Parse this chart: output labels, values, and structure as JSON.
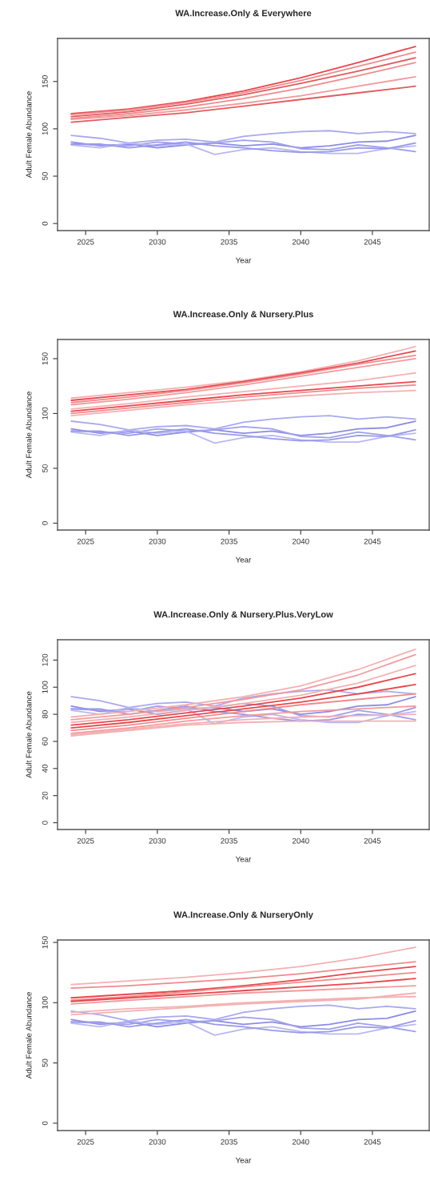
{
  "chart_data": [
    {
      "type": "line",
      "title": "WA.Increase.Only & Everywhere",
      "xlabel": "Year",
      "ylabel": "Adult Female Abundance",
      "xlim": [
        2023.04,
        2048.96
      ],
      "ylim": [
        -7.5,
        195.5
      ],
      "xticks": [
        2025,
        2030,
        2035,
        2040,
        2045
      ],
      "yticks": [
        0,
        50,
        100,
        150
      ],
      "grid": false,
      "line_style": "solid",
      "marker": "none",
      "series": [
        {
          "color": "#a9a9ee",
          "x": [
            2024,
            2026,
            2028,
            2030,
            2032,
            2034,
            2036,
            2038,
            2040,
            2042,
            2044,
            2046,
            2048
          ],
          "values": [
            93,
            90,
            85,
            88,
            89,
            86,
            92,
            95,
            97,
            98,
            95,
            97,
            95
          ]
        },
        {
          "color": "#8c8ce6",
          "x": [
            2024,
            2026,
            2028,
            2030,
            2032,
            2034,
            2036,
            2038,
            2040,
            2042,
            2044,
            2046,
            2048
          ],
          "values": [
            86,
            82,
            84,
            80,
            83,
            85,
            82,
            84,
            80,
            82,
            86,
            87,
            93
          ]
        },
        {
          "color": "#a0a0ec",
          "x": [
            2024,
            2026,
            2028,
            2030,
            2032,
            2034,
            2036,
            2038,
            2040,
            2042,
            2044,
            2046,
            2048
          ],
          "values": [
            84,
            83,
            82,
            86,
            84,
            85,
            88,
            86,
            79,
            78,
            83,
            80,
            76
          ]
        },
        {
          "color": "#b8b8f2",
          "x": [
            2024,
            2026,
            2028,
            2030,
            2032,
            2034,
            2036,
            2038,
            2040,
            2042,
            2044,
            2046,
            2048
          ],
          "values": [
            83,
            80,
            85,
            82,
            84,
            73,
            78,
            80,
            76,
            74,
            74,
            79,
            82
          ]
        },
        {
          "color": "#9898ea",
          "x": [
            2024,
            2026,
            2028,
            2030,
            2032,
            2034,
            2036,
            2038,
            2040,
            2042,
            2044,
            2046,
            2048
          ],
          "values": [
            84,
            84,
            80,
            83,
            86,
            82,
            80,
            77,
            75,
            76,
            80,
            79,
            85
          ]
        },
        {
          "color": "#e8474c",
          "x": [
            2024,
            2028,
            2032,
            2036,
            2040,
            2044,
            2048
          ],
          "values": [
            116,
            121,
            129,
            140,
            154,
            170,
            187
          ]
        },
        {
          "color": "#f08a8c",
          "x": [
            2024,
            2028,
            2032,
            2036,
            2040,
            2044,
            2048
          ],
          "values": [
            115,
            120,
            128,
            138,
            151,
            166,
            181
          ]
        },
        {
          "color": "#e25a5e",
          "x": [
            2024,
            2028,
            2032,
            2036,
            2040,
            2044,
            2048
          ],
          "values": [
            113,
            118,
            126,
            136,
            148,
            161,
            175
          ]
        },
        {
          "color": "#f08a8c",
          "x": [
            2024,
            2028,
            2032,
            2036,
            2040,
            2044,
            2048
          ],
          "values": [
            111,
            116,
            123,
            132,
            143,
            156,
            170
          ]
        },
        {
          "color": "#f29a9c",
          "x": [
            2024,
            2028,
            2032,
            2036,
            2040,
            2044,
            2048
          ],
          "values": [
            110,
            114,
            120,
            127,
            135,
            145,
            155
          ]
        },
        {
          "color": "#e25a5e",
          "x": [
            2024,
            2028,
            2032,
            2036,
            2040,
            2044,
            2048
          ],
          "values": [
            107,
            112,
            117,
            124,
            131,
            138,
            145
          ]
        }
      ]
    },
    {
      "type": "line",
      "title": "WA.Increase.Only & Nursery.Plus",
      "xlabel": "Year",
      "ylabel": "Adult Female Abundance",
      "xlim": [
        2023.04,
        2048.96
      ],
      "ylim": [
        -6.3,
        167.5
      ],
      "xticks": [
        2025,
        2030,
        2035,
        2040,
        2045
      ],
      "yticks": [
        0,
        50,
        100,
        150
      ],
      "grid": false,
      "line_style": "solid",
      "marker": "none",
      "series": [
        {
          "color": "#a9a9ee",
          "x": [
            2024,
            2026,
            2028,
            2030,
            2032,
            2034,
            2036,
            2038,
            2040,
            2042,
            2044,
            2046,
            2048
          ],
          "values": [
            93,
            90,
            85,
            88,
            89,
            86,
            92,
            95,
            97,
            98,
            95,
            97,
            95
          ]
        },
        {
          "color": "#8c8ce6",
          "x": [
            2024,
            2026,
            2028,
            2030,
            2032,
            2034,
            2036,
            2038,
            2040,
            2042,
            2044,
            2046,
            2048
          ],
          "values": [
            86,
            82,
            84,
            80,
            83,
            85,
            82,
            84,
            80,
            82,
            86,
            87,
            93
          ]
        },
        {
          "color": "#a0a0ec",
          "x": [
            2024,
            2026,
            2028,
            2030,
            2032,
            2034,
            2036,
            2038,
            2040,
            2042,
            2044,
            2046,
            2048
          ],
          "values": [
            84,
            83,
            82,
            86,
            84,
            85,
            88,
            86,
            79,
            78,
            83,
            80,
            76
          ]
        },
        {
          "color": "#b8b8f2",
          "x": [
            2024,
            2026,
            2028,
            2030,
            2032,
            2034,
            2036,
            2038,
            2040,
            2042,
            2044,
            2046,
            2048
          ],
          "values": [
            83,
            80,
            85,
            82,
            84,
            73,
            78,
            80,
            76,
            74,
            74,
            79,
            82
          ]
        },
        {
          "color": "#9898ea",
          "x": [
            2024,
            2026,
            2028,
            2030,
            2032,
            2034,
            2036,
            2038,
            2040,
            2042,
            2044,
            2046,
            2048
          ],
          "values": [
            84,
            84,
            80,
            83,
            86,
            82,
            80,
            77,
            75,
            76,
            80,
            79,
            85
          ]
        },
        {
          "color": "#f4b0b2",
          "x": [
            2024,
            2028,
            2032,
            2036,
            2040,
            2044,
            2048
          ],
          "values": [
            114,
            119,
            124,
            130,
            138,
            148,
            161
          ]
        },
        {
          "color": "#e8474c",
          "x": [
            2024,
            2028,
            2032,
            2036,
            2040,
            2044,
            2048
          ],
          "values": [
            112,
            117,
            122,
            129,
            137,
            146,
            157
          ]
        },
        {
          "color": "#f08a8c",
          "x": [
            2024,
            2028,
            2032,
            2036,
            2040,
            2044,
            2048
          ],
          "values": [
            110,
            115,
            121,
            128,
            136,
            145,
            153
          ]
        },
        {
          "color": "#f29a9c",
          "x": [
            2024,
            2028,
            2032,
            2036,
            2040,
            2044,
            2048
          ],
          "values": [
            108,
            113,
            119,
            126,
            134,
            142,
            150
          ]
        },
        {
          "color": "#f4b0b2",
          "x": [
            2024,
            2028,
            2032,
            2036,
            2040,
            2044,
            2048
          ],
          "values": [
            104,
            109,
            115,
            120,
            125,
            130,
            137
          ]
        },
        {
          "color": "#e8474c",
          "x": [
            2024,
            2028,
            2032,
            2036,
            2040,
            2044,
            2048
          ],
          "values": [
            102,
            107,
            112,
            117,
            121,
            125,
            129
          ]
        },
        {
          "color": "#f08a8c",
          "x": [
            2024,
            2028,
            2032,
            2036,
            2040,
            2044,
            2048
          ],
          "values": [
            100,
            105,
            110,
            115,
            119,
            123,
            126
          ]
        },
        {
          "color": "#f4b0b2",
          "x": [
            2024,
            2028,
            2032,
            2036,
            2040,
            2044,
            2048
          ],
          "values": [
            98,
            103,
            108,
            112,
            116,
            119,
            121
          ]
        }
      ]
    },
    {
      "type": "line",
      "title": "WA.Increase.Only & Nursery.Plus.VeryLow",
      "xlabel": "Year",
      "ylabel": "Adult Female Abundance",
      "xlim": [
        2023.04,
        2048.96
      ],
      "ylim": [
        -5,
        135
      ],
      "xticks": [
        2025,
        2030,
        2035,
        2040,
        2045
      ],
      "yticks": [
        0,
        20,
        40,
        60,
        80,
        100,
        120
      ],
      "grid": false,
      "line_style": "solid",
      "marker": "none",
      "series": [
        {
          "color": "#a9a9ee",
          "x": [
            2024,
            2026,
            2028,
            2030,
            2032,
            2034,
            2036,
            2038,
            2040,
            2042,
            2044,
            2046,
            2048
          ],
          "values": [
            93,
            90,
            85,
            88,
            89,
            86,
            92,
            95,
            97,
            98,
            95,
            97,
            95
          ]
        },
        {
          "color": "#8c8ce6",
          "x": [
            2024,
            2026,
            2028,
            2030,
            2032,
            2034,
            2036,
            2038,
            2040,
            2042,
            2044,
            2046,
            2048
          ],
          "values": [
            86,
            82,
            84,
            80,
            83,
            85,
            82,
            84,
            80,
            82,
            86,
            87,
            93
          ]
        },
        {
          "color": "#a0a0ec",
          "x": [
            2024,
            2026,
            2028,
            2030,
            2032,
            2034,
            2036,
            2038,
            2040,
            2042,
            2044,
            2046,
            2048
          ],
          "values": [
            84,
            83,
            82,
            86,
            84,
            85,
            88,
            86,
            79,
            78,
            83,
            80,
            76
          ]
        },
        {
          "color": "#b8b8f2",
          "x": [
            2024,
            2026,
            2028,
            2030,
            2032,
            2034,
            2036,
            2038,
            2040,
            2042,
            2044,
            2046,
            2048
          ],
          "values": [
            83,
            80,
            85,
            82,
            84,
            73,
            78,
            80,
            76,
            74,
            74,
            79,
            82
          ]
        },
        {
          "color": "#9898ea",
          "x": [
            2024,
            2026,
            2028,
            2030,
            2032,
            2034,
            2036,
            2038,
            2040,
            2042,
            2044,
            2046,
            2048
          ],
          "values": [
            84,
            84,
            80,
            83,
            86,
            82,
            80,
            77,
            75,
            76,
            80,
            79,
            85
          ]
        },
        {
          "color": "#f4b0b2",
          "x": [
            2024,
            2028,
            2032,
            2036,
            2040,
            2044,
            2048
          ],
          "values": [
            78,
            82,
            87,
            93,
            101,
            113,
            128
          ]
        },
        {
          "color": "#f29a9c",
          "x": [
            2024,
            2028,
            2032,
            2036,
            2040,
            2044,
            2048
          ],
          "values": [
            76,
            80,
            85,
            91,
            98,
            109,
            124
          ]
        },
        {
          "color": "#f4b0b2",
          "x": [
            2024,
            2028,
            2032,
            2036,
            2040,
            2044,
            2048
          ],
          "values": [
            74,
            78,
            83,
            88,
            94,
            103,
            116
          ]
        },
        {
          "color": "#e8474c",
          "x": [
            2024,
            2028,
            2032,
            2036,
            2040,
            2044,
            2048
          ],
          "values": [
            72,
            76,
            81,
            86,
            92,
            100,
            110
          ]
        },
        {
          "color": "#e8474c",
          "x": [
            2024,
            2028,
            2032,
            2036,
            2040,
            2044,
            2048
          ],
          "values": [
            70,
            74,
            79,
            84,
            89,
            95,
            102
          ]
        },
        {
          "color": "#f08a8c",
          "x": [
            2024,
            2028,
            2032,
            2036,
            2040,
            2044,
            2048
          ],
          "values": [
            68,
            72,
            77,
            82,
            87,
            91,
            95
          ]
        },
        {
          "color": "#f29a9c",
          "x": [
            2024,
            2028,
            2032,
            2036,
            2040,
            2044,
            2048
          ],
          "values": [
            66,
            70,
            75,
            79,
            82,
            84,
            86
          ]
        },
        {
          "color": "#f4b0b2",
          "x": [
            2024,
            2028,
            2032,
            2036,
            2040,
            2044,
            2048
          ],
          "values": [
            65,
            69,
            73,
            76,
            78,
            79,
            80
          ]
        },
        {
          "color": "#f4b0b2",
          "x": [
            2024,
            2028,
            2032,
            2036,
            2040,
            2044,
            2048
          ],
          "values": [
            64,
            68,
            72,
            74,
            75,
            75,
            75
          ]
        }
      ]
    },
    {
      "type": "line",
      "title": "WA.Increase.Only & NurseryOnly",
      "xlabel": "Year",
      "ylabel": "Adult Female Abundance",
      "xlim": [
        2023.04,
        2048.96
      ],
      "ylim": [
        -6.1,
        152
      ],
      "xticks": [
        2025,
        2030,
        2035,
        2040,
        2045
      ],
      "yticks": [
        0,
        50,
        100,
        150
      ],
      "grid": false,
      "line_style": "solid",
      "marker": "none",
      "series": [
        {
          "color": "#a9a9ee",
          "x": [
            2024,
            2026,
            2028,
            2030,
            2032,
            2034,
            2036,
            2038,
            2040,
            2042,
            2044,
            2046,
            2048
          ],
          "values": [
            93,
            90,
            85,
            88,
            89,
            86,
            92,
            95,
            97,
            98,
            95,
            97,
            95
          ]
        },
        {
          "color": "#8c8ce6",
          "x": [
            2024,
            2026,
            2028,
            2030,
            2032,
            2034,
            2036,
            2038,
            2040,
            2042,
            2044,
            2046,
            2048
          ],
          "values": [
            86,
            82,
            84,
            80,
            83,
            85,
            82,
            84,
            80,
            82,
            86,
            87,
            93
          ]
        },
        {
          "color": "#a0a0ec",
          "x": [
            2024,
            2026,
            2028,
            2030,
            2032,
            2034,
            2036,
            2038,
            2040,
            2042,
            2044,
            2046,
            2048
          ],
          "values": [
            84,
            83,
            82,
            86,
            84,
            85,
            88,
            86,
            79,
            78,
            83,
            80,
            76
          ]
        },
        {
          "color": "#b8b8f2",
          "x": [
            2024,
            2026,
            2028,
            2030,
            2032,
            2034,
            2036,
            2038,
            2040,
            2042,
            2044,
            2046,
            2048
          ],
          "values": [
            83,
            80,
            85,
            82,
            84,
            73,
            78,
            80,
            76,
            74,
            74,
            79,
            82
          ]
        },
        {
          "color": "#9898ea",
          "x": [
            2024,
            2026,
            2028,
            2030,
            2032,
            2034,
            2036,
            2038,
            2040,
            2042,
            2044,
            2046,
            2048
          ],
          "values": [
            84,
            84,
            80,
            83,
            86,
            82,
            80,
            77,
            75,
            76,
            80,
            79,
            85
          ]
        },
        {
          "color": "#f4b0b2",
          "x": [
            2024,
            2028,
            2032,
            2036,
            2040,
            2044,
            2048
          ],
          "values": [
            115,
            118,
            121,
            125,
            130,
            137,
            146
          ]
        },
        {
          "color": "#f08a8c",
          "x": [
            2024,
            2028,
            2032,
            2036,
            2040,
            2044,
            2048
          ],
          "values": [
            112,
            114,
            117,
            120,
            124,
            129,
            134
          ]
        },
        {
          "color": "#e8474c",
          "x": [
            2024,
            2028,
            2032,
            2036,
            2040,
            2044,
            2048
          ],
          "values": [
            104,
            107,
            110,
            114,
            119,
            125,
            130
          ]
        },
        {
          "color": "#f08a8c",
          "x": [
            2024,
            2028,
            2032,
            2036,
            2040,
            2044,
            2048
          ],
          "values": [
            102,
            105,
            109,
            113,
            117,
            121,
            125
          ]
        },
        {
          "color": "#e8474c",
          "x": [
            2024,
            2028,
            2032,
            2036,
            2040,
            2044,
            2048
          ],
          "values": [
            101,
            104,
            107,
            110,
            113,
            116,
            120
          ]
        },
        {
          "color": "#f29a9c",
          "x": [
            2024,
            2028,
            2032,
            2036,
            2040,
            2044,
            2048
          ],
          "values": [
            99,
            102,
            105,
            108,
            110,
            112,
            114
          ]
        },
        {
          "color": "#f4b0b2",
          "x": [
            2024,
            2028,
            2032,
            2036,
            2040,
            2044,
            2048
          ],
          "values": [
            92,
            95,
            97,
            100,
            102,
            104,
            105
          ]
        },
        {
          "color": "#f4b0b2",
          "x": [
            2024,
            2028,
            2032,
            2036,
            2040,
            2044,
            2048
          ],
          "values": [
            90,
            93,
            96,
            99,
            101,
            103,
            108
          ]
        }
      ]
    }
  ]
}
